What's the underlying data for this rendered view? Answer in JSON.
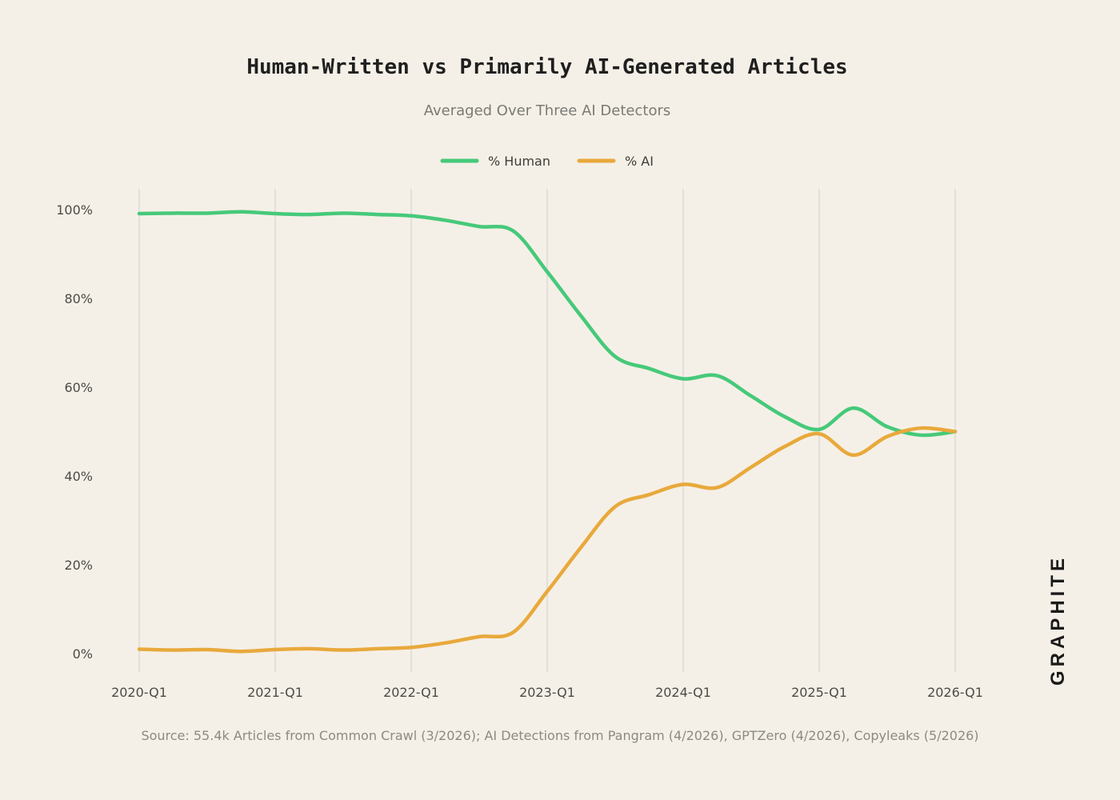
{
  "chart_data": {
    "type": "line",
    "title": "Human-Written vs Primarily AI-Generated Articles",
    "subtitle": "Averaged Over Three AI Detectors",
    "source": "Source: 55.4k Articles from Common Crawl (3/2026); AI Detections from Pangram (4/2026), GPTZero (4/2026), Copyleaks (5/2026)",
    "logo": "GRAPHITE",
    "legend_position": "top-center",
    "grid": "vertical",
    "x_ticks": [
      "2020-Q1",
      "2021-Q1",
      "2022-Q1",
      "2023-Q1",
      "2024-Q1",
      "2025-Q1",
      "2026-Q1"
    ],
    "y_ticks": [
      "0%",
      "20%",
      "40%",
      "60%",
      "80%",
      "100%"
    ],
    "ylim": [
      0,
      100
    ],
    "x": [
      "2020-Q1",
      "2020-Q2",
      "2020-Q3",
      "2020-Q4",
      "2021-Q1",
      "2021-Q2",
      "2021-Q3",
      "2021-Q4",
      "2022-Q1",
      "2022-Q2",
      "2022-Q3",
      "2022-Q4",
      "2023-Q1",
      "2023-Q2",
      "2023-Q3",
      "2023-Q4",
      "2024-Q1",
      "2024-Q2",
      "2024-Q3",
      "2024-Q4",
      "2025-Q1",
      "2025-Q2",
      "2025-Q3",
      "2025-Q4",
      "2026-Q1"
    ],
    "series": [
      {
        "name": "% Human",
        "color": "#46c97a",
        "values": [
          99.1,
          99.2,
          99.2,
          99.5,
          99.1,
          98.9,
          99.2,
          98.9,
          98.6,
          97.6,
          96.2,
          95.2,
          86.0,
          76.0,
          66.9,
          64.2,
          61.9,
          62.6,
          58.0,
          53.3,
          50.5,
          55.3,
          51.1,
          49.2,
          50.0
        ]
      },
      {
        "name": "% AI",
        "color": "#e8a93c",
        "values": [
          1.0,
          0.8,
          0.9,
          0.5,
          0.9,
          1.1,
          0.8,
          1.1,
          1.4,
          2.4,
          3.8,
          4.8,
          14.0,
          24.0,
          33.1,
          35.8,
          38.1,
          37.4,
          42.0,
          46.7,
          49.5,
          44.7,
          48.9,
          50.8,
          50.0
        ]
      }
    ]
  }
}
